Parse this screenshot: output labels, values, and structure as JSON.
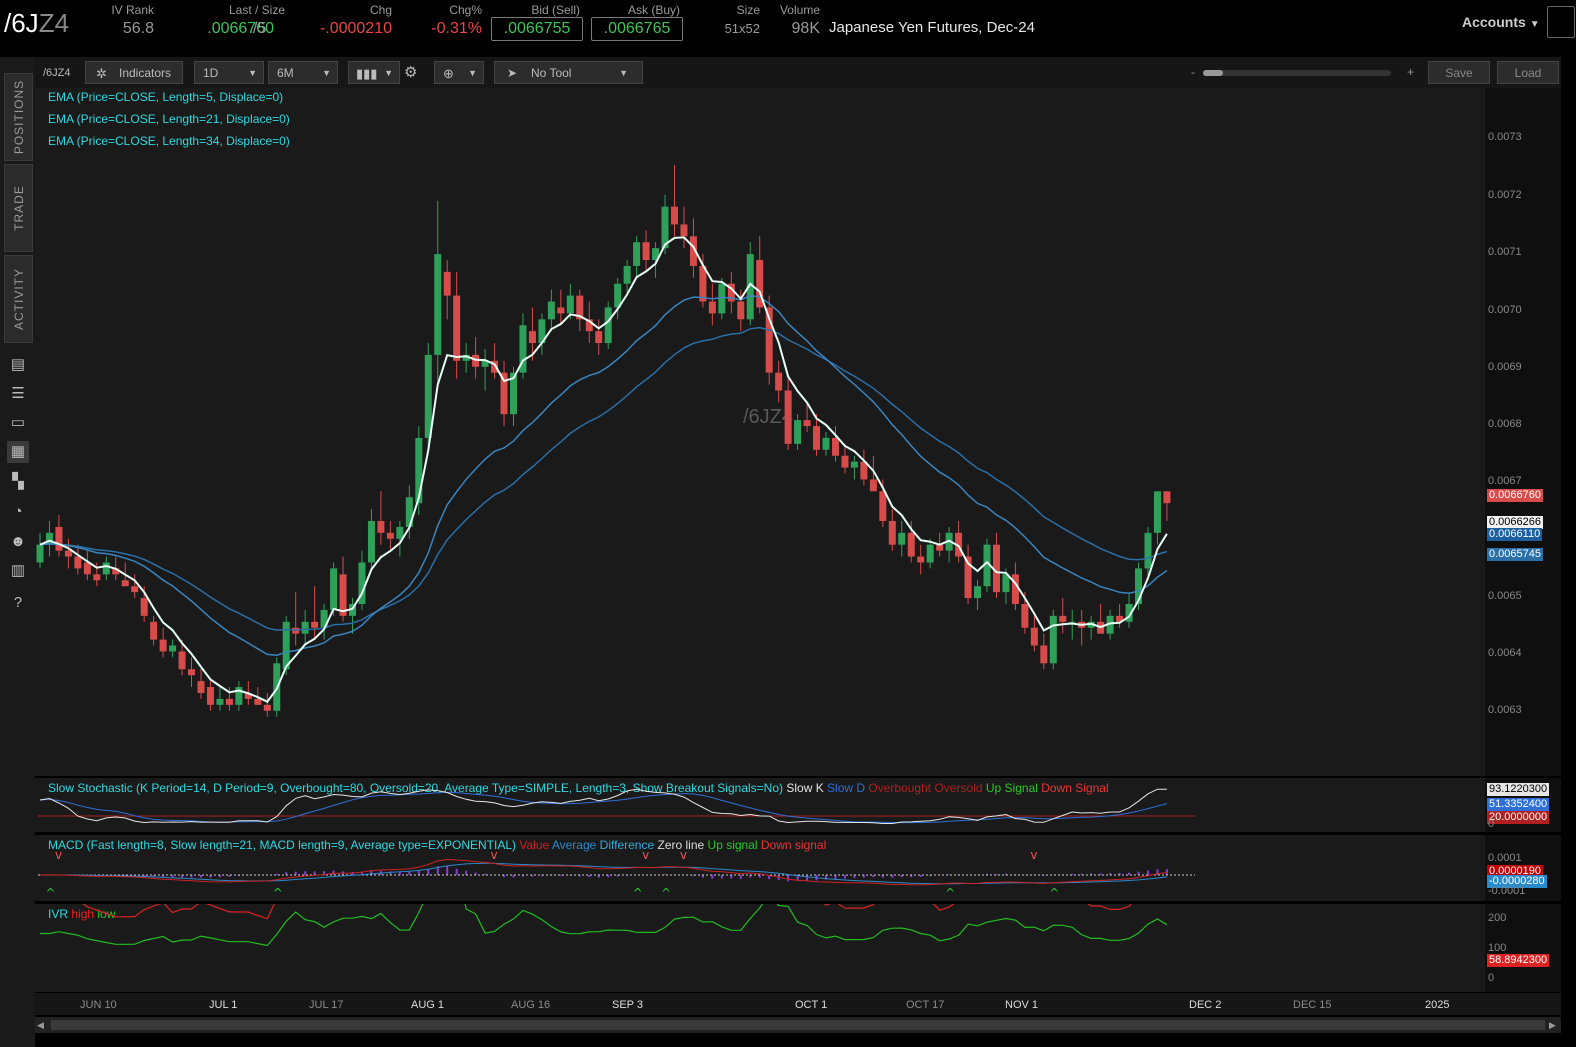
{
  "header": {
    "symbol_main": "/6J",
    "symbol_dim": "Z4",
    "iv_rank_label": "IV Rank",
    "iv_rank_value": "56.8",
    "last_label": "Last / Size",
    "last_value": ".0066760",
    "last_size": "/5",
    "chg_label": "Chg",
    "chg_value": "-.0000210",
    "chgp_label": "Chg%",
    "chgp_value": "-0.31%",
    "bid_label": "Bid (Sell)",
    "bid_value": ".0066755",
    "ask_label": "Ask (Buy)",
    "ask_value": ".0066765",
    "size_label": "Size",
    "size_value": "51x52",
    "volume_label": "Volume",
    "volume_value": "98K",
    "description": "Japanese Yen Futures, Dec-24",
    "accounts_label": "Accounts"
  },
  "sidebar": {
    "tabs": [
      "POSITIONS",
      "TRADE",
      "ACTIVITY"
    ]
  },
  "toolbar": {
    "symbol": "/6JZ4",
    "indicators_label": "Indicators",
    "interval": "1D",
    "range": "6M",
    "tool_label": "No Tool",
    "zoom_minus": "-",
    "zoom_plus": "+",
    "save_label": "Save",
    "load_label": "Load"
  },
  "studies": {
    "ema1": "EMA (Price=CLOSE, Length=5, Displace=0)",
    "ema2": "EMA (Price=CLOSE, Length=21, Displace=0)",
    "ema3": "EMA (Price=CLOSE, Length=34, Displace=0)",
    "watermark": "/6JZ4",
    "stoch_title": "Slow Stochastic (K Period=14, D Period=9, Overbought=80, Oversold=20, Average Type=SIMPLE, Length=3, Show Breakout Signals=No)",
    "stoch_legend": [
      {
        "label": "Slow K",
        "color": "#e6e6e6"
      },
      {
        "label": "Slow D",
        "color": "#2f6fd8"
      },
      {
        "label": "Overbought",
        "color": "#b02020"
      },
      {
        "label": "Oversold",
        "color": "#b02020"
      },
      {
        "label": "Up Signal",
        "color": "#22cc22"
      },
      {
        "label": "Down Signal",
        "color": "#ee3333"
      }
    ],
    "macd_title": "MACD (Fast length=8, Slow length=21, MACD length=9, Average type=EXPONENTIAL)",
    "macd_legend": [
      {
        "label": "Value",
        "color": "#cc2222"
      },
      {
        "label": "Average",
        "color": "#2a8acc"
      },
      {
        "label": "Difference",
        "color": "#33aadd"
      },
      {
        "label": "Zero line",
        "color": "#dddddd"
      },
      {
        "label": "Up signal",
        "color": "#22cc22"
      },
      {
        "label": "Down signal",
        "color": "#ee3333"
      }
    ],
    "ivr_title": "IVR",
    "ivr_legend": [
      {
        "label": "high",
        "color": "#ee2222"
      },
      {
        "label": "low",
        "color": "#22cc22"
      }
    ]
  },
  "price_axis": {
    "ticks": [
      "0.0073",
      "0.0072",
      "0.0071",
      "0.0070",
      "0.0069",
      "0.0068",
      "0.0067",
      "0.0066",
      "0.0065",
      "0.0064",
      "0.0063"
    ],
    "last_tag": "0.0066760",
    "ema5_tag": "0.0066266",
    "ema21_tag": "0.0066110",
    "ema34_tag": "0.0065745"
  },
  "stoch_axis": {
    "k_tag": "93.1220300",
    "d_tag": "51.3352400",
    "os_tag": "20.0000000",
    "zero": "0"
  },
  "macd_axis": {
    "top": "0.0001",
    "value_tag": "0.0000190",
    "avg_tag": "-0.0000280",
    "bottom": "-0.0001"
  },
  "ivr_axis": {
    "t200": "200",
    "t100": "100",
    "t0": "0",
    "tag": "58.8942300"
  },
  "x_axis": [
    "JUN 10",
    "JUL 1",
    "JUL 17",
    "AUG 1",
    "AUG 16",
    "SEP 3",
    "OCT 1",
    "OCT 17",
    "NOV 1",
    "DEC 2",
    "DEC 15",
    "2025"
  ],
  "colors": {
    "up": "#2ea05a",
    "down": "#d84b4b",
    "ema5": "#e6fff7",
    "ema21": "#3a7fb8",
    "ema34": "#2b6fa8"
  },
  "chart_data": {
    "type": "candlestick",
    "ylim": [
      0.00622,
      0.00738
    ],
    "ohlc": [
      [
        0.00658,
        0.00663,
        0.00657,
        0.00661
      ],
      [
        0.00661,
        0.00665,
        0.00659,
        0.00663
      ],
      [
        0.00664,
        0.00666,
        0.00659,
        0.0066
      ],
      [
        0.0066,
        0.00662,
        0.00657,
        0.00659
      ],
      [
        0.00659,
        0.00661,
        0.00656,
        0.00657
      ],
      [
        0.00658,
        0.0066,
        0.00655,
        0.00656
      ],
      [
        0.00656,
        0.00658,
        0.00654,
        0.00655
      ],
      [
        0.00656,
        0.00659,
        0.00655,
        0.00658
      ],
      [
        0.00657,
        0.00659,
        0.00655,
        0.00656
      ],
      [
        0.00655,
        0.00658,
        0.00654,
        0.00654
      ],
      [
        0.00654,
        0.00656,
        0.00652,
        0.00653
      ],
      [
        0.00652,
        0.00654,
        0.00648,
        0.00649
      ],
      [
        0.00648,
        0.00649,
        0.00644,
        0.00645
      ],
      [
        0.00645,
        0.00647,
        0.00642,
        0.00643
      ],
      [
        0.00643,
        0.00645,
        0.00642,
        0.00644
      ],
      [
        0.00643,
        0.00645,
        0.00639,
        0.0064
      ],
      [
        0.0064,
        0.00642,
        0.00637,
        0.00639
      ],
      [
        0.00638,
        0.0064,
        0.00635,
        0.00636
      ],
      [
        0.00637,
        0.00638,
        0.00633,
        0.00634
      ],
      [
        0.00634,
        0.00637,
        0.00633,
        0.00635
      ],
      [
        0.00635,
        0.00637,
        0.00633,
        0.00634
      ],
      [
        0.00634,
        0.00638,
        0.00633,
        0.00637
      ],
      [
        0.00636,
        0.00638,
        0.00634,
        0.00635
      ],
      [
        0.00635,
        0.00637,
        0.00634,
        0.00634
      ],
      [
        0.00634,
        0.00636,
        0.00632,
        0.00633
      ],
      [
        0.00633,
        0.00642,
        0.00632,
        0.00641
      ],
      [
        0.0064,
        0.00649,
        0.00639,
        0.00648
      ],
      [
        0.00647,
        0.00653,
        0.00644,
        0.00646
      ],
      [
        0.00646,
        0.0065,
        0.00644,
        0.00648
      ],
      [
        0.00648,
        0.00654,
        0.00645,
        0.00647
      ],
      [
        0.00647,
        0.00651,
        0.00645,
        0.0065
      ],
      [
        0.0065,
        0.00658,
        0.00649,
        0.00657
      ],
      [
        0.00656,
        0.00659,
        0.00648,
        0.00649
      ],
      [
        0.00649,
        0.00652,
        0.00646,
        0.00651
      ],
      [
        0.00651,
        0.0066,
        0.0065,
        0.00658
      ],
      [
        0.00658,
        0.00667,
        0.00657,
        0.00665
      ],
      [
        0.00665,
        0.0067,
        0.00661,
        0.00663
      ],
      [
        0.00663,
        0.00665,
        0.0066,
        0.00662
      ],
      [
        0.00662,
        0.00665,
        0.00659,
        0.00664
      ],
      [
        0.00664,
        0.00671,
        0.00662,
        0.00669
      ],
      [
        0.00668,
        0.00681,
        0.00666,
        0.00679
      ],
      [
        0.00679,
        0.00695,
        0.00677,
        0.00693
      ],
      [
        0.00693,
        0.00719,
        0.00688,
        0.0071
      ],
      [
        0.00707,
        0.00709,
        0.00699,
        0.00703
      ],
      [
        0.00703,
        0.00707,
        0.00689,
        0.00692
      ],
      [
        0.00692,
        0.00695,
        0.0069,
        0.00693
      ],
      [
        0.00693,
        0.00696,
        0.00689,
        0.00691
      ],
      [
        0.00691,
        0.00694,
        0.00687,
        0.00692
      ],
      [
        0.00692,
        0.00695,
        0.00689,
        0.0069
      ],
      [
        0.0069,
        0.00692,
        0.00681,
        0.00683
      ],
      [
        0.00683,
        0.00691,
        0.00681,
        0.0069
      ],
      [
        0.0069,
        0.007,
        0.00689,
        0.00698
      ],
      [
        0.00697,
        0.00701,
        0.00692,
        0.00695
      ],
      [
        0.00695,
        0.007,
        0.00693,
        0.00699
      ],
      [
        0.00699,
        0.00704,
        0.00697,
        0.00702
      ],
      [
        0.00701,
        0.00704,
        0.00698,
        0.007
      ],
      [
        0.007,
        0.00705,
        0.00699,
        0.00703
      ],
      [
        0.00703,
        0.00704,
        0.00697,
        0.00699
      ],
      [
        0.00699,
        0.00702,
        0.00695,
        0.00697
      ],
      [
        0.00697,
        0.00699,
        0.00693,
        0.00695
      ],
      [
        0.00695,
        0.00702,
        0.00694,
        0.00701
      ],
      [
        0.00701,
        0.00706,
        0.00699,
        0.00705
      ],
      [
        0.00705,
        0.00709,
        0.00703,
        0.00708
      ],
      [
        0.00708,
        0.00713,
        0.00706,
        0.00712
      ],
      [
        0.00712,
        0.00714,
        0.00707,
        0.00709
      ],
      [
        0.00709,
        0.00712,
        0.00706,
        0.00711
      ],
      [
        0.00711,
        0.0072,
        0.0071,
        0.00718
      ],
      [
        0.00718,
        0.00725,
        0.00713,
        0.00715
      ],
      [
        0.00715,
        0.00718,
        0.00711,
        0.00713
      ],
      [
        0.00713,
        0.00716,
        0.00706,
        0.00708
      ],
      [
        0.00708,
        0.0071,
        0.00701,
        0.00702
      ],
      [
        0.00702,
        0.00705,
        0.00698,
        0.007
      ],
      [
        0.007,
        0.00706,
        0.00699,
        0.00705
      ],
      [
        0.00705,
        0.00707,
        0.007,
        0.00702
      ],
      [
        0.00702,
        0.00704,
        0.00697,
        0.00699
      ],
      [
        0.00699,
        0.00712,
        0.00698,
        0.0071
      ],
      [
        0.00709,
        0.00713,
        0.007,
        0.00701
      ],
      [
        0.00701,
        0.00703,
        0.00688,
        0.0069
      ],
      [
        0.0069,
        0.00692,
        0.00685,
        0.00687
      ],
      [
        0.00687,
        0.00689,
        0.00677,
        0.00678
      ],
      [
        0.00678,
        0.00683,
        0.00677,
        0.00682
      ],
      [
        0.00682,
        0.00685,
        0.0068,
        0.00681
      ],
      [
        0.00681,
        0.00683,
        0.00676,
        0.00677
      ],
      [
        0.00677,
        0.0068,
        0.00676,
        0.00679
      ],
      [
        0.00679,
        0.00681,
        0.00675,
        0.00676
      ],
      [
        0.00676,
        0.00678,
        0.00673,
        0.00674
      ],
      [
        0.00674,
        0.00676,
        0.00672,
        0.00675
      ],
      [
        0.00675,
        0.00677,
        0.00671,
        0.00672
      ],
      [
        0.00672,
        0.00676,
        0.0067,
        0.0067
      ],
      [
        0.0067,
        0.00672,
        0.00664,
        0.00665
      ],
      [
        0.00665,
        0.00667,
        0.0066,
        0.00661
      ],
      [
        0.00661,
        0.00665,
        0.00659,
        0.00663
      ],
      [
        0.00663,
        0.00665,
        0.00658,
        0.00659
      ],
      [
        0.00659,
        0.00661,
        0.00656,
        0.00658
      ],
      [
        0.00658,
        0.00662,
        0.00657,
        0.00661
      ],
      [
        0.00661,
        0.00663,
        0.00659,
        0.0066
      ],
      [
        0.0066,
        0.00664,
        0.00658,
        0.00663
      ],
      [
        0.00663,
        0.00665,
        0.00658,
        0.00659
      ],
      [
        0.00659,
        0.00661,
        0.00651,
        0.00652
      ],
      [
        0.00652,
        0.00655,
        0.0065,
        0.00654
      ],
      [
        0.00654,
        0.00662,
        0.00653,
        0.00661
      ],
      [
        0.00661,
        0.00663,
        0.00652,
        0.00653
      ],
      [
        0.00653,
        0.00657,
        0.00651,
        0.00656
      ],
      [
        0.00656,
        0.00658,
        0.0065,
        0.00651
      ],
      [
        0.00651,
        0.00653,
        0.00646,
        0.00647
      ],
      [
        0.00647,
        0.00649,
        0.00643,
        0.00644
      ],
      [
        0.00644,
        0.00646,
        0.0064,
        0.00641
      ],
      [
        0.00641,
        0.0065,
        0.0064,
        0.00649
      ],
      [
        0.00649,
        0.00652,
        0.00646,
        0.00648
      ],
      [
        0.00648,
        0.0065,
        0.00645,
        0.00648
      ],
      [
        0.00648,
        0.0065,
        0.00644,
        0.00647
      ],
      [
        0.00647,
        0.00649,
        0.00645,
        0.00648
      ],
      [
        0.00648,
        0.00651,
        0.00646,
        0.00646
      ],
      [
        0.00646,
        0.0065,
        0.00645,
        0.00649
      ],
      [
        0.00649,
        0.00651,
        0.00647,
        0.00648
      ],
      [
        0.00648,
        0.00653,
        0.00647,
        0.00651
      ],
      [
        0.00651,
        0.00658,
        0.0065,
        0.00657
      ],
      [
        0.00657,
        0.00664,
        0.00655,
        0.00663
      ],
      [
        0.00663,
        0.0067,
        0.00661,
        0.0067
      ],
      [
        0.0067,
        0.0067,
        0.00665,
        0.00668
      ]
    ]
  }
}
